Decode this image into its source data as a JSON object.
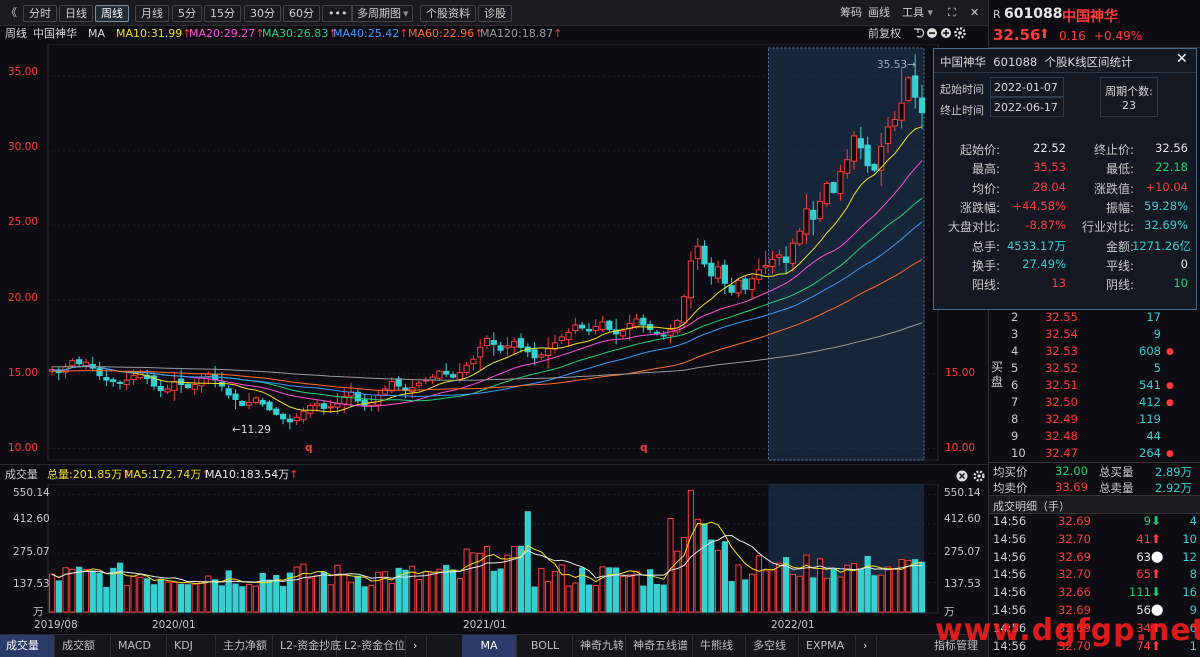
{
  "toolbar": {
    "back": "《",
    "periods": [
      "分时",
      "日线",
      "周线",
      "月线",
      "5分",
      "15分",
      "30分",
      "60分"
    ],
    "more": "•••",
    "multi": "多周期图",
    "multi_arrow": "▾",
    "stock_info": "个股资料",
    "diagnose": "诊股",
    "chip": "筹码",
    "draw": "画线",
    "tools": "工具",
    "tools_arrow": "▾",
    "expand": "⛶",
    "close": "✕"
  },
  "indicator_bar": {
    "period": "周线",
    "name": "中国神华",
    "ma_label": "MA",
    "items": [
      {
        "text": "MA10:31.99",
        "arrow": "↑",
        "color": "#f0e020"
      },
      {
        "text": "MA20:29.27",
        "arrow": "↑",
        "color": "#ff4fd8"
      },
      {
        "text": "MA30:26.83",
        "arrow": "↑",
        "color": "#26d07c"
      },
      {
        "text": "MA40:25.42",
        "arrow": "↑",
        "color": "#3a9bff"
      },
      {
        "text": "MA60:22.96",
        "arrow": "↑",
        "color": "#ff6a2b"
      },
      {
        "text": "MA120:18.87",
        "arrow": "↑",
        "color": "#9a9a9a"
      }
    ],
    "restore": "前复权"
  },
  "price_axis": {
    "left": [
      "35.00",
      "30.00",
      "25.00",
      "20.00",
      "15.00",
      "10.00"
    ],
    "right": [
      "15.00",
      "10.00"
    ]
  },
  "annotations": {
    "low_label": "11.29",
    "high_label": "35.53",
    "q_marker": "q"
  },
  "volume_bar": {
    "title": "成交量",
    "total": "总量:201.85万",
    "total_arrow": "↑",
    "ma5": "MA5:172.74万",
    "ma5_arrow": "↑",
    "ma10": "MA10:183.54万",
    "ma10_arrow": "↑",
    "axis": [
      "550.14",
      "412.60",
      "275.07",
      "137.53"
    ],
    "unit": "万"
  },
  "time_axis": [
    "2019/08",
    "2020/01",
    "2021/01",
    "2022/01"
  ],
  "bottom_tabs": [
    "成交量",
    "成交额",
    "MACD",
    "KDJ",
    "主力净额",
    "L2-资金抄底",
    "L2-资金仓位",
    "MA",
    "BOLL",
    "神奇九转",
    "神奇五线谱",
    "牛熊线",
    "多空线",
    "EXPMA",
    "指标管理"
  ],
  "quote": {
    "prefix": "R",
    "code": "601088",
    "name": "中国神华",
    "price": "32.56",
    "change": "0.16",
    "pct": "+0.49%"
  },
  "popup": {
    "title": "中国神华  601088  个股K线区间统计",
    "start_label": "起始时间",
    "start": "2022-01-07",
    "end_label": "终止时间",
    "end": "2022-06-17",
    "period_label": "周期个数:",
    "period_count": "23",
    "stats": [
      {
        "l1": "起始价:",
        "v1": "22.52",
        "c1": "white",
        "l2": "终止价:",
        "v2": "32.56",
        "c2": "white"
      },
      {
        "l1": "最高:",
        "v1": "35.53",
        "c1": "red",
        "l2": "最低:",
        "v2": "22.18",
        "c2": "green"
      },
      {
        "l1": "均价:",
        "v1": "28.04",
        "c1": "red",
        "l2": "涨跌值:",
        "v2": "+10.04",
        "c2": "red"
      },
      {
        "l1": "涨跌幅:",
        "v1": "+44.58%",
        "c1": "red",
        "l2": "振幅:",
        "v2": "59.28%",
        "c2": "cyan"
      },
      {
        "l1": "大盘对比:",
        "v1": "-8.87%",
        "c1": "red",
        "l2": "行业对比:",
        "v2": "32.69%",
        "c2": "cyan"
      },
      {
        "l1": "总手:",
        "v1": "4533.17万",
        "c1": "cyan",
        "l2": "金额:",
        "v2": "1271.26亿",
        "c2": "cyan"
      },
      {
        "l1": "换手:",
        "v1": "27.49%",
        "c1": "cyan",
        "l2": "平线:",
        "v2": "0",
        "c2": "white"
      },
      {
        "l1": "阳线:",
        "v1": "13",
        "c1": "red",
        "l2": "阴线:",
        "v2": "10",
        "c2": "green"
      }
    ]
  },
  "order_book": {
    "side_label": "买盘",
    "rows": [
      {
        "n": "2",
        "p": "32.55",
        "v": "17",
        "dot": false
      },
      {
        "n": "3",
        "p": "32.54",
        "v": "9",
        "dot": false
      },
      {
        "n": "4",
        "p": "32.53",
        "v": "608",
        "dot": true
      },
      {
        "n": "5",
        "p": "32.52",
        "v": "5",
        "dot": false
      },
      {
        "n": "6",
        "p": "32.51",
        "v": "541",
        "dot": true
      },
      {
        "n": "7",
        "p": "32.50",
        "v": "412",
        "dot": true
      },
      {
        "n": "8",
        "p": "32.49",
        "v": "119",
        "dot": false
      },
      {
        "n": "9",
        "p": "32.48",
        "v": "44",
        "dot": false
      },
      {
        "n": "10",
        "p": "32.47",
        "v": "264",
        "dot": true
      }
    ]
  },
  "summary": {
    "buy_avg_label": "均买价",
    "buy_avg": "32.00",
    "buy_total_label": "总买量",
    "buy_total": "2.89万",
    "sell_avg_label": "均卖价",
    "sell_avg": "33.69",
    "sell_total_label": "总卖量",
    "sell_total": "2.92万"
  },
  "trades": {
    "title": "成交明细（手）",
    "rows": [
      {
        "t": "14:56",
        "p": "32.69",
        "pc": "red",
        "v": "9",
        "dir": "down",
        "n": "4"
      },
      {
        "t": "14:56",
        "p": "32.70",
        "pc": "red",
        "v": "41",
        "dir": "up",
        "n": "10"
      },
      {
        "t": "14:56",
        "p": "32.69",
        "pc": "red",
        "v": "63",
        "dir": "flat",
        "n": "12"
      },
      {
        "t": "14:56",
        "p": "32.70",
        "pc": "red",
        "v": "65",
        "dir": "up",
        "n": "8"
      },
      {
        "t": "14:56",
        "p": "32.66",
        "pc": "red",
        "v": "111",
        "dir": "down",
        "n": "16"
      },
      {
        "t": "14:56",
        "p": "32.69",
        "pc": "red",
        "v": "56",
        "dir": "flat",
        "n": "9"
      },
      {
        "t": "14:56",
        "p": "32.69",
        "pc": "red",
        "v": "34",
        "dir": "up",
        "n": "6"
      },
      {
        "t": "14:56",
        "p": "32.70",
        "pc": "red",
        "v": "74",
        "dir": "up",
        "n": "1"
      }
    ]
  },
  "colors": {
    "up": "#ff3b3b",
    "down": "#36d0d0",
    "accent": "#2a3b6a",
    "selection": "#1f3a55"
  },
  "watermark": "www.dgfgp.net",
  "chart_data": {
    "type": "candlestick",
    "period": "weekly",
    "price_range": [
      9.5,
      36.5
    ],
    "volume_range": [
      0,
      600
    ],
    "volume_unit": "万",
    "ma_periods": [
      10,
      20,
      30,
      40,
      60,
      120
    ],
    "closes": [
      15.3,
      15.1,
      15.5,
      15.9,
      15.7,
      15.8,
      15.4,
      14.9,
      14.6,
      14.5,
      14.4,
      14.6,
      14.9,
      15.1,
      14.7,
      14.2,
      13.9,
      14.0,
      14.5,
      14.3,
      14.1,
      14.3,
      14.8,
      15.0,
      14.6,
      14.2,
      13.6,
      13.3,
      12.9,
      13.1,
      13.4,
      13.0,
      12.6,
      12.3,
      12.0,
      11.8,
      12.1,
      12.5,
      12.9,
      13.0,
      12.7,
      12.8,
      13.0,
      13.5,
      13.8,
      13.2,
      12.9,
      13.1,
      13.6,
      14.0,
      14.5,
      14.2,
      13.9,
      14.1,
      14.4,
      14.6,
      14.8,
      15.2,
      15.0,
      14.8,
      15.1,
      15.6,
      16.0,
      16.8,
      17.4,
      17.0,
      16.6,
      16.9,
      17.2,
      16.8,
      16.5,
      16.1,
      16.3,
      16.7,
      17.1,
      17.5,
      17.8,
      18.3,
      18.1,
      17.9,
      18.2,
      18.5,
      18.0,
      17.7,
      17.9,
      18.4,
      18.7,
      18.3,
      18.0,
      17.8,
      17.6,
      18.0,
      18.6,
      20.2,
      22.6,
      23.6,
      22.4,
      21.6,
      22.2,
      21.1,
      20.5,
      21.3,
      20.7,
      21.4,
      22.0,
      22.3,
      22.7,
      23.0,
      22.5,
      23.8,
      24.6,
      26.1,
      25.4,
      26.6,
      27.8,
      27.2,
      28.6,
      29.4,
      31.0,
      30.2,
      29.0,
      28.7,
      30.3,
      31.6,
      32.1,
      33.2,
      34.9,
      33.6,
      32.56
    ]
  }
}
